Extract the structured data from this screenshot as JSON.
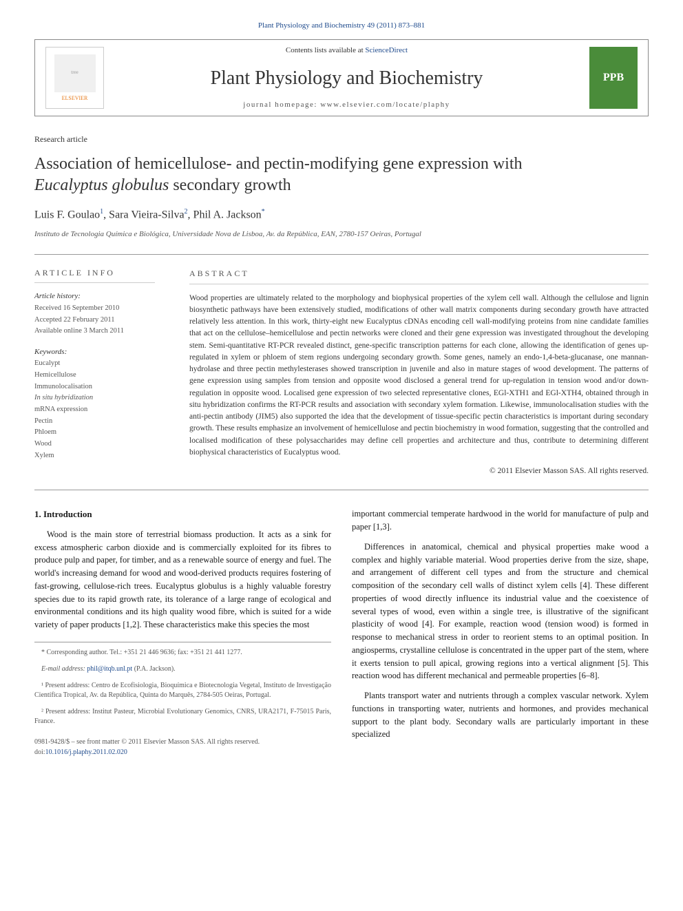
{
  "header": {
    "citation": "Plant Physiology and Biochemistry 49 (2011) 873–881",
    "contents_prefix": "Contents lists available at ",
    "contents_link": "ScienceDirect",
    "journal_name": "Plant Physiology and Biochemistry",
    "homepage_label": "journal homepage: ",
    "homepage_url": "www.elsevier.com/locate/plaphy",
    "elsevier_label": "ELSEVIER",
    "ppb_label": "PPB"
  },
  "article": {
    "type": "Research article",
    "title_line1": "Association of hemicellulose- and pectin-modifying gene expression with",
    "title_line2_italic": "Eucalyptus globulus",
    "title_line2_rest": " secondary growth",
    "authors_html": "Luis F. Goulao",
    "author1_sup": "1",
    "author2": ", Sara Vieira-Silva",
    "author2_sup": "2",
    "author3": ", Phil A. Jackson",
    "author3_sup": "*",
    "affiliation": "Instituto de Tecnologia Química e Biológica, Universidade Nova de Lisboa, Av. da República, EAN, 2780-157 Oeiras, Portugal"
  },
  "info": {
    "heading": "ARTICLE INFO",
    "history_label": "Article history:",
    "received": "Received 16 September 2010",
    "accepted": "Accepted 22 February 2011",
    "online": "Available online 3 March 2011",
    "keywords_label": "Keywords:",
    "keywords": [
      "Eucalypt",
      "Hemicellulose",
      "Immunolocalisation",
      "In situ hybridization",
      "mRNA expression",
      "Pectin",
      "Phloem",
      "Wood",
      "Xylem"
    ]
  },
  "abstract": {
    "heading": "ABSTRACT",
    "text": "Wood properties are ultimately related to the morphology and biophysical properties of the xylem cell wall. Although the cellulose and lignin biosynthetic pathways have been extensively studied, modifications of other wall matrix components during secondary growth have attracted relatively less attention. In this work, thirty-eight new Eucalyptus cDNAs encoding cell wall-modifying proteins from nine candidate families that act on the cellulose–hemicellulose and pectin networks were cloned and their gene expression was investigated throughout the developing stem. Semi-quantitative RT-PCR revealed distinct, gene-specific transcription patterns for each clone, allowing the identification of genes up-regulated in xylem or phloem of stem regions undergoing secondary growth. Some genes, namely an endo-1,4-beta-glucanase, one mannan-hydrolase and three pectin methylesterases showed transcription in juvenile and also in mature stages of wood development. The patterns of gene expression using samples from tension and opposite wood disclosed a general trend for up-regulation in tension wood and/or down-regulation in opposite wood. Localised gene expression of two selected representative clones, EGl-XTH1 and EGl-XTH4, obtained through in situ hybridization confirms the RT-PCR results and association with secondary xylem formation. Likewise, immunolocalisation studies with the anti-pectin antibody (JIM5) also supported the idea that the development of tissue-specific pectin characteristics is important during secondary growth. These results emphasize an involvement of hemicellulose and pectin biochemistry in wood formation, suggesting that the controlled and localised modification of these polysaccharides may define cell properties and architecture and thus, contribute to determining different biophysical characteristics of Eucalyptus wood.",
    "copyright": "© 2011 Elsevier Masson SAS. All rights reserved."
  },
  "body": {
    "section1": "1. Introduction",
    "p1": "Wood is the main store of terrestrial biomass production. It acts as a sink for excess atmospheric carbon dioxide and is commercially exploited for its fibres to produce pulp and paper, for timber, and as a renewable source of energy and fuel. The world's increasing demand for wood and wood-derived products requires fostering of fast-growing, cellulose-rich trees. Eucalyptus globulus is a highly valuable forestry species due to its rapid growth rate, its tolerance of a large range of ecological and environmental conditions and its high quality wood fibre, which is suited for a wide variety of paper products [1,2]. These characteristics make this species the most",
    "p2": "important commercial temperate hardwood in the world for manufacture of pulp and paper [1,3].",
    "p3": "Differences in anatomical, chemical and physical properties make wood a complex and highly variable material. Wood properties derive from the size, shape, and arrangement of different cell types and from the structure and chemical composition of the secondary cell walls of distinct xylem cells [4]. These different properties of wood directly influence its industrial value and the coexistence of several types of wood, even within a single tree, is illustrative of the significant plasticity of wood [4]. For example, reaction wood (tension wood) is formed in response to mechanical stress in order to reorient stems to an optimal position. In angiosperms, crystalline cellulose is concentrated in the upper part of the stem, where it exerts tension to pull apical, growing regions into a vertical alignment [5]. This reaction wood has different mechanical and permeable properties [6–8].",
    "p4": "Plants transport water and nutrients through a complex vascular network. Xylem functions in transporting water, nutrients and hormones, and provides mechanical support to the plant body. Secondary walls are particularly important in these specialized"
  },
  "footnotes": {
    "corresponding": "* Corresponding author. Tel.: +351 21 446 9636; fax: +351 21 441 1277.",
    "email_label": "E-mail address: ",
    "email": "phil@itqb.unl.pt",
    "email_suffix": " (P.A. Jackson).",
    "fn1": "¹ Present address: Centro de Ecofisiologia, Bioquímica e Biotecnologia Vegetal, Instituto de Investigação Científica Tropical, Av. da República, Quinta do Marquês, 2784-505 Oeiras, Portugal.",
    "fn2": "² Present address: Institut Pasteur, Microbial Evolutionary Genomics, CNRS, URA2171, F-75015 Paris, France.",
    "frontmatter": "0981-9428/$ – see front matter © 2011 Elsevier Masson SAS. All rights reserved.",
    "doi_label": "doi:",
    "doi": "10.1016/j.plaphy.2011.02.020"
  },
  "colors": {
    "link": "#1e4a8c",
    "elsevier": "#e67817",
    "ppb_bg": "#4a8c3a"
  }
}
